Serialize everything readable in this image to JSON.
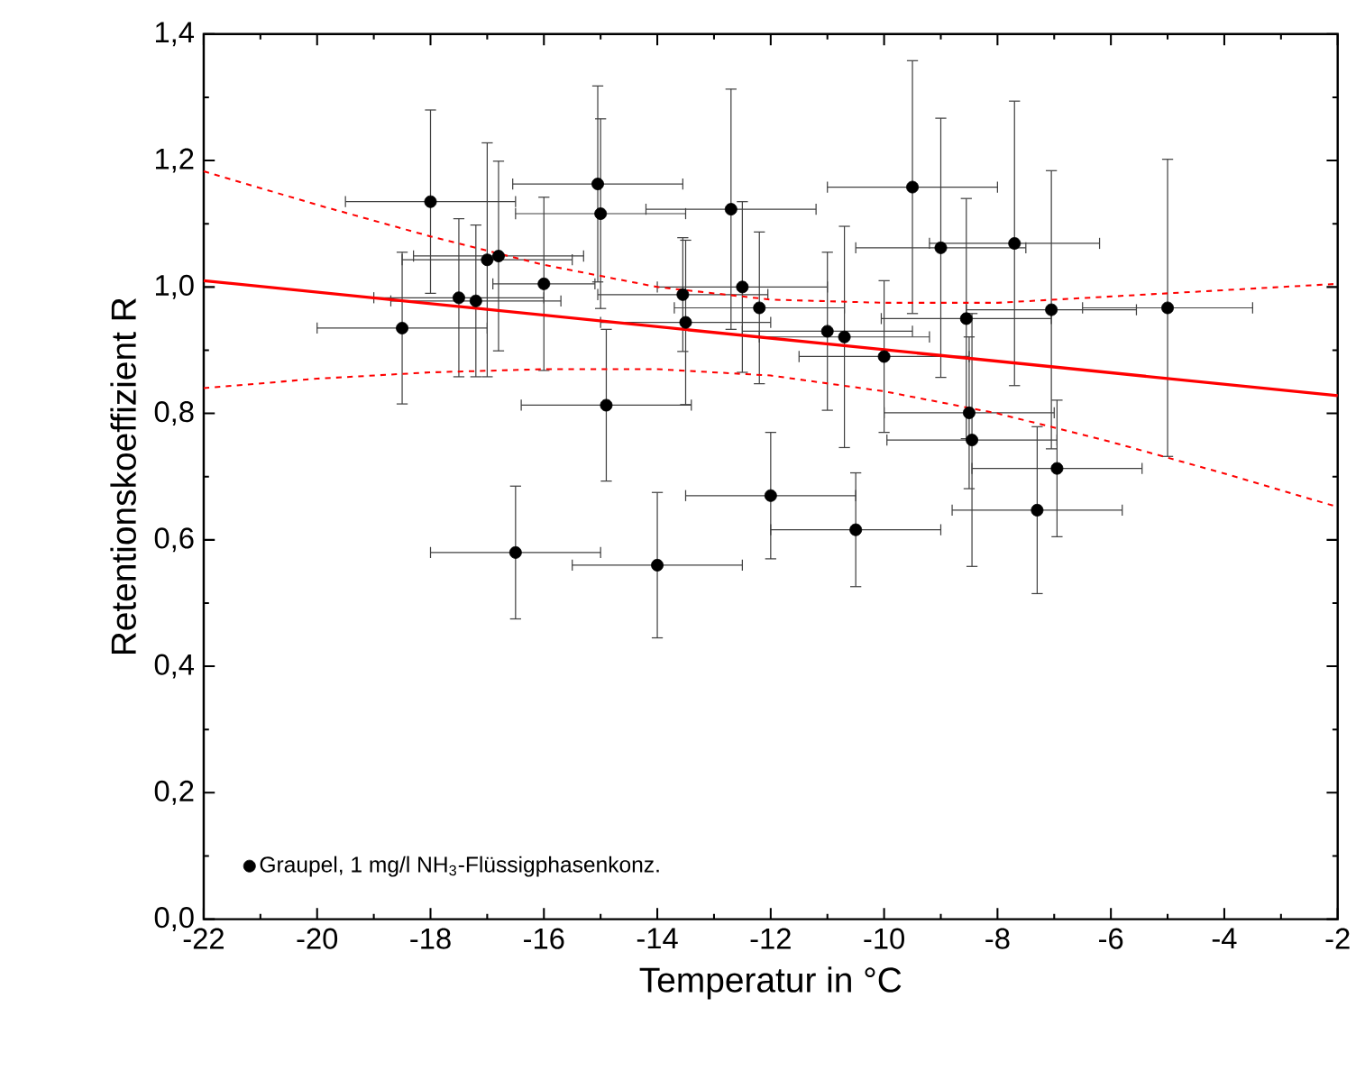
{
  "chart_data": {
    "type": "scatter",
    "xlabel": "Temperatur in °C",
    "ylabel": "Retentionskoeffizient R",
    "xlim": [
      -22,
      -2
    ],
    "ylim": [
      0,
      1.4
    ],
    "xticks": [
      -22,
      -20,
      -18,
      -16,
      -14,
      -12,
      -10,
      -8,
      -6,
      -4,
      -2
    ],
    "yticks": [
      {
        "value": 0,
        "label": "0,0"
      },
      {
        "value": 0.2,
        "label": "0,2"
      },
      {
        "value": 0.4,
        "label": "0,4"
      },
      {
        "value": 0.6,
        "label": "0,6"
      },
      {
        "value": 0.8,
        "label": "0,8"
      },
      {
        "value": 1.0,
        "label": "1,0"
      },
      {
        "value": 1.2,
        "label": "1,2"
      },
      {
        "value": 1.4,
        "label": "1,4"
      }
    ],
    "grid": false,
    "legend": "bottom left",
    "series": [
      {
        "name": "Graupel, 1 mg/l NH$_{3}$-Flüssigphasenkonz.",
        "marker": "circle",
        "color": "#000000",
        "x": [
          -18.5,
          -18.0,
          -17.5,
          -17.2,
          -17.0,
          -16.8,
          -16.0,
          -15.05,
          -15.0,
          -14.9,
          -14.0,
          -16.5,
          -13.55,
          -13.5,
          -12.7,
          -12.5,
          -12.2,
          -12.0,
          -11.0,
          -10.7,
          -10.0,
          -9.5,
          -9.0,
          -7.7,
          -8.55,
          -7.05,
          -5.0,
          -8.5,
          -8.45,
          -6.95,
          -7.3,
          -10.5
        ],
        "values": [
          0.935,
          1.135,
          0.983,
          0.978,
          1.043,
          1.049,
          1.005,
          1.163,
          1.116,
          0.813,
          0.56,
          0.58,
          0.988,
          0.944,
          1.123,
          1.0,
          0.967,
          0.67,
          0.93,
          0.921,
          0.89,
          1.158,
          1.062,
          1.069,
          0.95,
          0.964,
          0.967,
          0.801,
          0.758,
          0.713,
          0.647,
          0.616
        ],
        "errors": [
          0.12,
          0.145,
          0.125,
          0.12,
          0.185,
          0.15,
          0.137,
          0.155,
          0.15,
          0.12,
          0.115,
          0.105,
          0.09,
          0.13,
          0.19,
          0.135,
          0.12,
          0.1,
          0.125,
          0.175,
          0.12,
          0.2,
          0.205,
          0.225,
          0.19,
          0.22,
          0.235,
          0.12,
          0.2,
          0.108,
          0.132,
          0.09
        ],
        "xerrors": [
          1.5,
          1.5,
          1.5,
          1.5,
          1.5,
          1.5,
          0.9,
          1.5,
          1.5,
          1.5,
          1.5,
          1.5,
          1.5,
          1.5,
          1.5,
          1.5,
          1.5,
          1.5,
          1.5,
          1.5,
          1.5,
          1.5,
          1.5,
          1.5,
          1.5,
          1.5,
          1.5,
          1.5,
          1.5,
          1.5,
          1.5,
          1.5
        ]
      },
      {
        "type": "line",
        "color": "#ff0000",
        "line_style": "solid",
        "marker": "none",
        "x": [
          -22,
          -2
        ],
        "values": [
          1.01,
          0.828
        ]
      },
      {
        "type": "line",
        "color": "#ff0000",
        "line_style": "dashed",
        "marker": "none",
        "x": [
          -22,
          -20,
          -18,
          -16,
          -14,
          -12,
          -10,
          -8,
          -6,
          -4,
          -2
        ],
        "values": [
          1.183,
          1.13,
          1.08,
          1.035,
          1.0,
          0.98,
          0.975,
          0.975,
          0.985,
          0.995,
          1.005
        ]
      },
      {
        "type": "line",
        "color": "#ff0000",
        "line_style": "dashed",
        "marker": "none",
        "x": [
          -22,
          -20,
          -18,
          -16,
          -14,
          -12,
          -10,
          -8,
          -6,
          -4,
          -2
        ],
        "values": [
          0.84,
          0.855,
          0.865,
          0.87,
          0.87,
          0.86,
          0.835,
          0.8,
          0.755,
          0.705,
          0.652
        ]
      }
    ]
  }
}
